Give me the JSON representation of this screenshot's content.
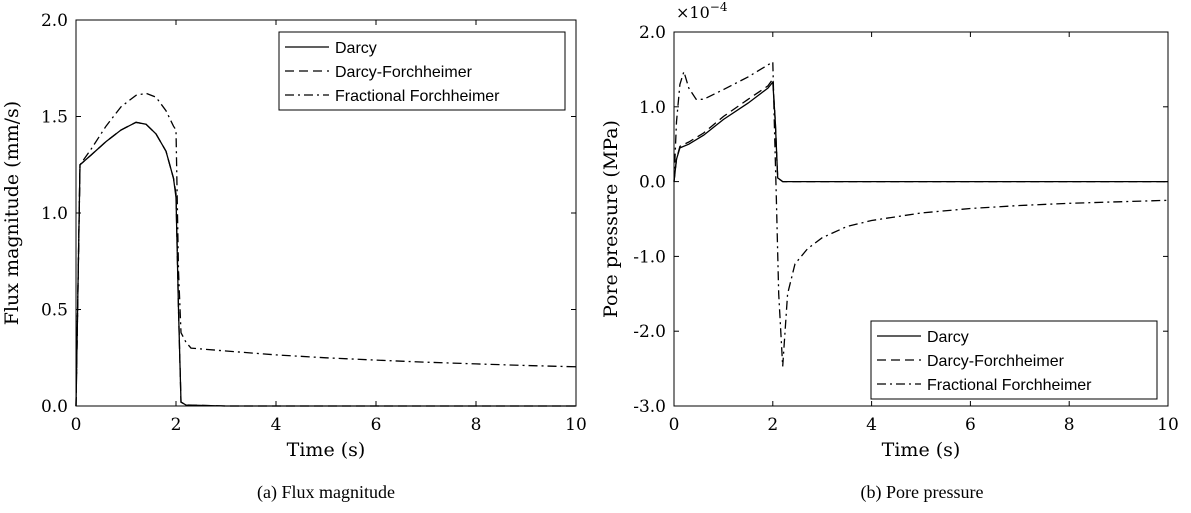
{
  "captions": [
    "(a) Flux magnitude",
    "(b) Pore pressure"
  ],
  "chart_data": [
    {
      "type": "line",
      "xlabel": "Time (s)",
      "ylabel": "Flux magnitude (mm/s)",
      "xlim": [
        0,
        10
      ],
      "ylim": [
        0,
        2
      ],
      "x_ticks": [
        0,
        2,
        4,
        6,
        8,
        10
      ],
      "x_tick_labels": [
        "0",
        "2",
        "4",
        "6",
        "8",
        "10"
      ],
      "y_ticks": [
        0,
        0.5,
        1,
        1.5,
        2
      ],
      "y_tick_labels": [
        "0.0",
        "0.5",
        "1.0",
        "1.5",
        "2.0"
      ],
      "grid": false,
      "legend_position": "top-right",
      "series": [
        {
          "name": "Darcy",
          "style": "solid",
          "points": [
            [
              0,
              0
            ],
            [
              0.08,
              1.25
            ],
            [
              0.3,
              1.3
            ],
            [
              0.6,
              1.37
            ],
            [
              0.9,
              1.43
            ],
            [
              1.2,
              1.47
            ],
            [
              1.4,
              1.46
            ],
            [
              1.6,
              1.41
            ],
            [
              1.8,
              1.32
            ],
            [
              1.95,
              1.18
            ],
            [
              2.0,
              1.08
            ],
            [
              2.05,
              0.5
            ],
            [
              2.1,
              0.02
            ],
            [
              2.2,
              0.005
            ],
            [
              3,
              0
            ],
            [
              10,
              0
            ]
          ]
        },
        {
          "name": "Darcy-Forchheimer",
          "style": "dashed",
          "points": [
            [
              0,
              0
            ],
            [
              0.08,
              1.25
            ],
            [
              0.3,
              1.3
            ],
            [
              0.6,
              1.37
            ],
            [
              0.9,
              1.43
            ],
            [
              1.2,
              1.47
            ],
            [
              1.4,
              1.46
            ],
            [
              1.6,
              1.41
            ],
            [
              1.8,
              1.32
            ],
            [
              1.95,
              1.18
            ],
            [
              2.0,
              1.1
            ],
            [
              2.05,
              0.5
            ],
            [
              2.1,
              0.02
            ],
            [
              2.2,
              0.005
            ],
            [
              3,
              0
            ],
            [
              10,
              0
            ]
          ]
        },
        {
          "name": "Fractional Forchheimer",
          "style": "dashdot",
          "points": [
            [
              0,
              0
            ],
            [
              0.08,
              1.25
            ],
            [
              0.3,
              1.33
            ],
            [
              0.6,
              1.45
            ],
            [
              0.9,
              1.55
            ],
            [
              1.2,
              1.61
            ],
            [
              1.4,
              1.62
            ],
            [
              1.6,
              1.6
            ],
            [
              1.8,
              1.53
            ],
            [
              1.95,
              1.45
            ],
            [
              2.0,
              1.43
            ],
            [
              2.05,
              0.7
            ],
            [
              2.1,
              0.38
            ],
            [
              2.2,
              0.33
            ],
            [
              2.3,
              0.3
            ],
            [
              3,
              0.285
            ],
            [
              4,
              0.265
            ],
            [
              5,
              0.25
            ],
            [
              6,
              0.238
            ],
            [
              7,
              0.227
            ],
            [
              8,
              0.218
            ],
            [
              9,
              0.21
            ],
            [
              10,
              0.203
            ]
          ]
        }
      ]
    },
    {
      "type": "line",
      "xlabel": "Time (s)",
      "ylabel": "Pore pressure (MPa)",
      "exponent_label": "×10",
      "exponent_power": "−4",
      "xlim": [
        0,
        10
      ],
      "ylim": [
        -3,
        2
      ],
      "x_ticks": [
        0,
        2,
        4,
        6,
        8,
        10
      ],
      "x_tick_labels": [
        "0",
        "2",
        "4",
        "6",
        "8",
        "10"
      ],
      "y_ticks": [
        -3,
        -2,
        -1,
        0,
        1,
        2
      ],
      "y_tick_labels": [
        "-3.0",
        "-2.0",
        "-1.0",
        "0.0",
        "1.0",
        "2.0"
      ],
      "grid": false,
      "legend_position": "bottom-right",
      "series": [
        {
          "name": "Darcy",
          "style": "solid",
          "points": [
            [
              0,
              0
            ],
            [
              0.05,
              0.3
            ],
            [
              0.12,
              0.45
            ],
            [
              0.3,
              0.5
            ],
            [
              0.6,
              0.62
            ],
            [
              1.0,
              0.83
            ],
            [
              1.5,
              1.05
            ],
            [
              1.9,
              1.25
            ],
            [
              2.0,
              1.33
            ],
            [
              2.05,
              0.8
            ],
            [
              2.1,
              0.05
            ],
            [
              2.2,
              0.0
            ],
            [
              3,
              0
            ],
            [
              10,
              0
            ]
          ]
        },
        {
          "name": "Darcy-Forchheimer",
          "style": "dashed",
          "points": [
            [
              0,
              0
            ],
            [
              0.05,
              0.3
            ],
            [
              0.12,
              0.47
            ],
            [
              0.3,
              0.53
            ],
            [
              0.6,
              0.65
            ],
            [
              1.0,
              0.87
            ],
            [
              1.5,
              1.1
            ],
            [
              1.9,
              1.28
            ],
            [
              2.0,
              1.37
            ],
            [
              2.05,
              0.8
            ],
            [
              2.1,
              0.05
            ],
            [
              2.2,
              0.0
            ],
            [
              3,
              0
            ],
            [
              10,
              0
            ]
          ]
        },
        {
          "name": "Fractional Forchheimer",
          "style": "dashdot",
          "points": [
            [
              0,
              0
            ],
            [
              0.05,
              0.8
            ],
            [
              0.12,
              1.3
            ],
            [
              0.2,
              1.47
            ],
            [
              0.3,
              1.25
            ],
            [
              0.45,
              1.1
            ],
            [
              0.6,
              1.1
            ],
            [
              1.0,
              1.23
            ],
            [
              1.5,
              1.4
            ],
            [
              1.9,
              1.56
            ],
            [
              2.0,
              1.6
            ],
            [
              2.03,
              0.8
            ],
            [
              2.07,
              -0.2
            ],
            [
              2.12,
              -1.5
            ],
            [
              2.2,
              -2.47
            ],
            [
              2.3,
              -1.5
            ],
            [
              2.45,
              -1.1
            ],
            [
              2.7,
              -0.9
            ],
            [
              3,
              -0.75
            ],
            [
              3.5,
              -0.6
            ],
            [
              4,
              -0.52
            ],
            [
              5,
              -0.42
            ],
            [
              6,
              -0.36
            ],
            [
              7,
              -0.32
            ],
            [
              8,
              -0.29
            ],
            [
              9,
              -0.27
            ],
            [
              10,
              -0.25
            ]
          ]
        }
      ]
    }
  ]
}
